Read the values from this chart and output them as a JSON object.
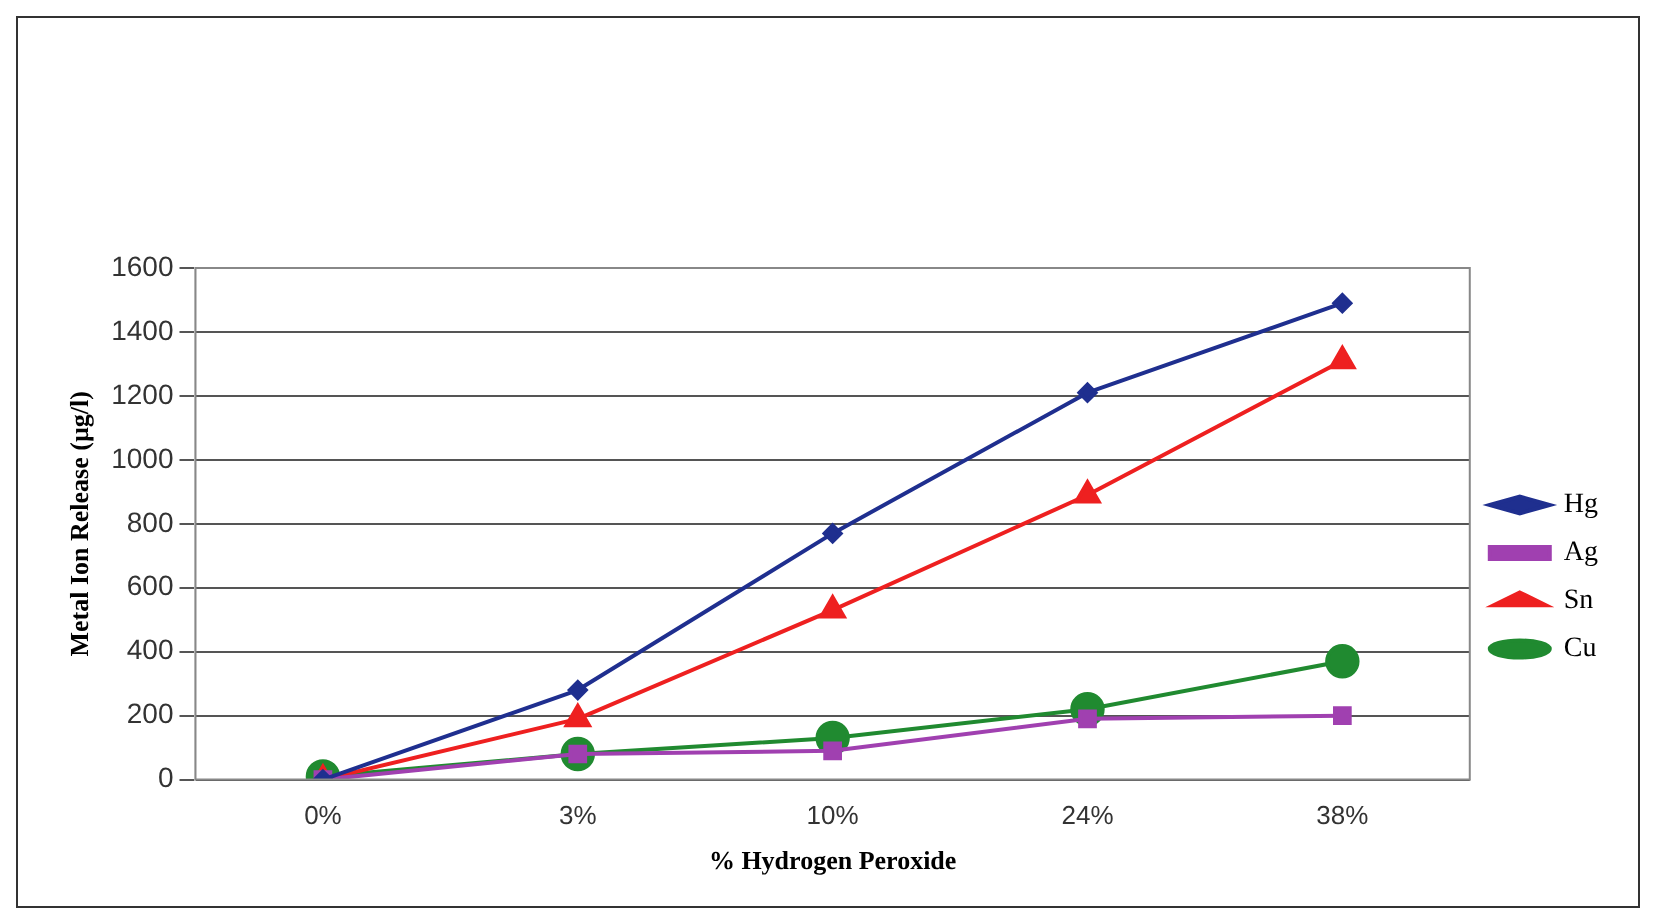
{
  "chart_data": {
    "type": "line",
    "xlabel": "% Hydrogen Peroxide",
    "ylabel": "Metal Ion Release (µg/l)",
    "categories": [
      "0%",
      "3%",
      "10%",
      "24%",
      "38%"
    ],
    "series": [
      {
        "name": "Hg",
        "color": "#1f2f8f",
        "marker": "diamond",
        "values": [
          0,
          280,
          770,
          1210,
          1490
        ]
      },
      {
        "name": "Ag",
        "color": "#a040b0",
        "marker": "square",
        "values": [
          0,
          80,
          90,
          190,
          200
        ]
      },
      {
        "name": "Sn",
        "color": "#ee2020",
        "marker": "triangle",
        "values": [
          0,
          190,
          530,
          890,
          1310
        ]
      },
      {
        "name": "Cu",
        "color": "#208a30",
        "marker": "circle",
        "values": [
          10,
          80,
          130,
          220,
          370
        ]
      }
    ],
    "ylim": [
      0,
      1600
    ],
    "yticks": [
      0,
      200,
      400,
      600,
      800,
      1000,
      1200,
      1400,
      1600
    ],
    "grid": "y",
    "legend": "right",
    "line_style": "solid"
  }
}
